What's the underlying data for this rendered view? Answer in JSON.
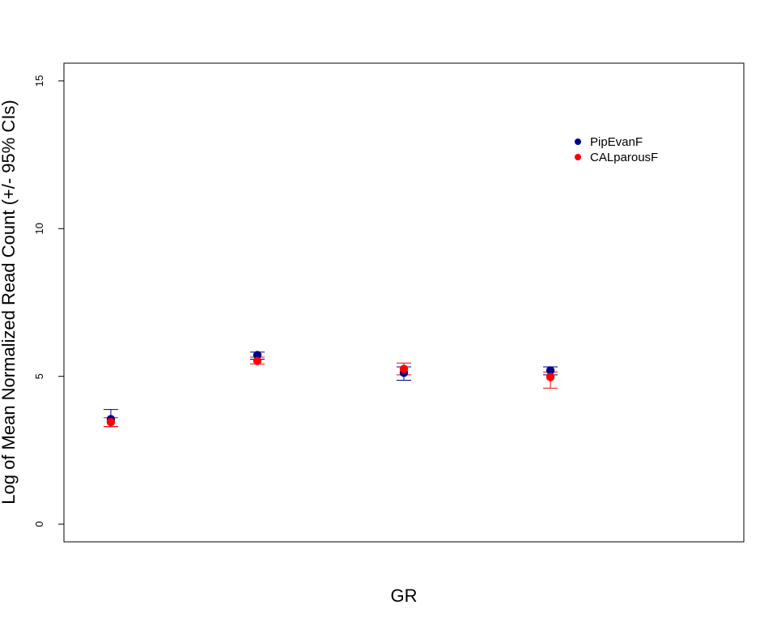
{
  "chart_data": {
    "type": "scatter",
    "title": "",
    "xlabel": "GR",
    "ylabel": "Log of Mean Normalized Read Count (+/- 95% CIs)",
    "ylim": [
      -0.6,
      15.6
    ],
    "yticks": [
      0,
      5,
      10,
      15
    ],
    "xlim": [
      0.68,
      5.32
    ],
    "grid": false,
    "legend_position": "top-right",
    "x": [
      1,
      2,
      3,
      4
    ],
    "series": [
      {
        "name": "PipEvanF",
        "color": "#00008B",
        "values": [
          3.55,
          5.72,
          5.12,
          5.2
        ],
        "ci_lower": [
          3.3,
          5.58,
          4.87,
          5.05
        ],
        "ci_upper": [
          3.88,
          5.82,
          5.32,
          5.32
        ]
      },
      {
        "name": "CALparousF",
        "color": "#FF0000",
        "values": [
          3.45,
          5.52,
          5.25,
          4.98
        ],
        "ci_lower": [
          3.3,
          5.42,
          5.05,
          4.6
        ],
        "ci_upper": [
          3.6,
          5.65,
          5.45,
          5.15
        ]
      }
    ]
  }
}
